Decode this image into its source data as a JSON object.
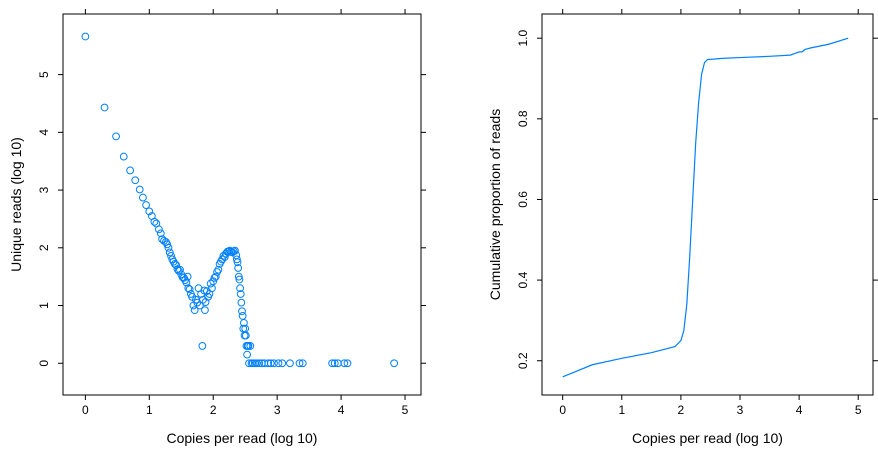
{
  "chart_data": [
    {
      "type": "scatter",
      "xlabel": "Copies per read (log 10)",
      "ylabel": "Unique reads (log 10)",
      "xlim": [
        -0.35,
        5.25
      ],
      "ylim": [
        -0.55,
        6.05
      ],
      "xticks": [
        "0",
        "1",
        "2",
        "3",
        "4",
        "5"
      ],
      "yticks": [
        "0",
        "1",
        "2",
        "3",
        "4",
        "5"
      ],
      "color": "#0080ff",
      "marker": "open-circle",
      "grid": false,
      "points": [
        [
          0.0,
          5.66
        ],
        [
          0.3,
          4.43
        ],
        [
          0.48,
          3.93
        ],
        [
          0.6,
          3.58
        ],
        [
          0.7,
          3.34
        ],
        [
          0.78,
          3.17
        ],
        [
          0.85,
          3.01
        ],
        [
          0.9,
          2.87
        ],
        [
          0.95,
          2.74
        ],
        [
          1.0,
          2.63
        ],
        [
          1.04,
          2.55
        ],
        [
          1.08,
          2.45
        ],
        [
          1.11,
          2.42
        ],
        [
          1.15,
          2.32
        ],
        [
          1.18,
          2.25
        ],
        [
          1.2,
          2.15
        ],
        [
          1.23,
          2.12
        ],
        [
          1.26,
          2.1
        ],
        [
          1.28,
          2.06
        ],
        [
          1.3,
          2.0
        ],
        [
          1.32,
          1.92
        ],
        [
          1.34,
          1.86
        ],
        [
          1.36,
          1.8
        ],
        [
          1.38,
          1.76
        ],
        [
          1.4,
          1.72
        ],
        [
          1.42,
          1.7
        ],
        [
          1.44,
          1.63
        ],
        [
          1.46,
          1.6
        ],
        [
          1.48,
          1.62
        ],
        [
          1.5,
          1.54
        ],
        [
          1.52,
          1.49
        ],
        [
          1.54,
          1.48
        ],
        [
          1.56,
          1.44
        ],
        [
          1.58,
          1.4
        ],
        [
          1.6,
          1.5
        ],
        [
          1.61,
          1.3
        ],
        [
          1.63,
          1.28
        ],
        [
          1.65,
          1.2
        ],
        [
          1.67,
          1.15
        ],
        [
          1.69,
          1.0
        ],
        [
          1.71,
          0.92
        ],
        [
          1.73,
          1.1
        ],
        [
          1.75,
          1.05
        ],
        [
          1.77,
          1.3
        ],
        [
          1.79,
          1.0
        ],
        [
          1.81,
          1.2
        ],
        [
          1.83,
          0.3
        ],
        [
          1.84,
          1.1
        ],
        [
          1.86,
          1.26
        ],
        [
          1.87,
          0.92
        ],
        [
          1.88,
          1.06
        ],
        [
          1.9,
          1.25
        ],
        [
          1.92,
          1.15
        ],
        [
          1.94,
          1.2
        ],
        [
          1.96,
          1.38
        ],
        [
          1.98,
          1.3
        ],
        [
          2.0,
          1.42
        ],
        [
          2.02,
          1.48
        ],
        [
          2.04,
          1.5
        ],
        [
          2.06,
          1.58
        ],
        [
          2.08,
          1.62
        ],
        [
          2.1,
          1.72
        ],
        [
          2.12,
          1.76
        ],
        [
          2.14,
          1.8
        ],
        [
          2.16,
          1.86
        ],
        [
          2.18,
          1.84
        ],
        [
          2.2,
          1.9
        ],
        [
          2.22,
          1.93
        ],
        [
          2.24,
          1.94
        ],
        [
          2.26,
          1.95
        ],
        [
          2.28,
          1.93
        ],
        [
          2.3,
          1.92
        ],
        [
          2.32,
          1.94
        ],
        [
          2.34,
          1.95
        ],
        [
          2.36,
          1.87
        ],
        [
          2.37,
          1.8
        ],
        [
          2.38,
          1.75
        ],
        [
          2.39,
          1.65
        ],
        [
          2.4,
          1.5
        ],
        [
          2.41,
          1.45
        ],
        [
          2.42,
          1.3
        ],
        [
          2.43,
          1.2
        ],
        [
          2.44,
          1.05
        ],
        [
          2.45,
          0.9
        ],
        [
          2.46,
          0.82
        ],
        [
          2.47,
          0.6
        ],
        [
          2.48,
          0.7
        ],
        [
          2.49,
          0.48
        ],
        [
          2.5,
          0.6
        ],
        [
          2.51,
          0.48
        ],
        [
          2.52,
          0.3
        ],
        [
          2.53,
          0.15
        ],
        [
          2.54,
          0.3
        ],
        [
          2.55,
          0.3
        ],
        [
          2.56,
          0.0
        ],
        [
          2.58,
          0.3
        ],
        [
          2.6,
          0.0
        ],
        [
          2.62,
          0.0
        ],
        [
          2.65,
          0.0
        ],
        [
          2.68,
          0.0
        ],
        [
          2.72,
          0.0
        ],
        [
          2.76,
          0.0
        ],
        [
          2.8,
          0.0
        ],
        [
          2.86,
          0.0
        ],
        [
          2.9,
          0.0
        ],
        [
          2.95,
          0.0
        ],
        [
          3.02,
          0.0
        ],
        [
          3.08,
          0.0
        ],
        [
          3.2,
          0.0
        ],
        [
          3.35,
          0.0
        ],
        [
          3.4,
          0.0
        ],
        [
          3.86,
          0.0
        ],
        [
          3.9,
          0.0
        ],
        [
          3.95,
          0.0
        ],
        [
          4.05,
          0.0
        ],
        [
          4.1,
          0.0
        ],
        [
          4.83,
          0.0
        ]
      ]
    },
    {
      "type": "line",
      "xlabel": "Copies per read (log 10)",
      "ylabel": "Cumulative proportion of reads",
      "xlim": [
        -0.35,
        5.25
      ],
      "ylim": [
        0.115,
        1.06
      ],
      "xticks": [
        "0",
        "1",
        "2",
        "3",
        "4",
        "5"
      ],
      "yticks": [
        "0.2",
        "0.4",
        "0.6",
        "0.8",
        "1.0"
      ],
      "color": "#0080ff",
      "grid": false,
      "points": [
        [
          0.0,
          0.16
        ],
        [
          0.2,
          0.172
        ],
        [
          0.5,
          0.19
        ],
        [
          1.0,
          0.206
        ],
        [
          1.5,
          0.22
        ],
        [
          1.9,
          0.235
        ],
        [
          2.0,
          0.25
        ],
        [
          2.05,
          0.275
        ],
        [
          2.1,
          0.34
        ],
        [
          2.15,
          0.46
        ],
        [
          2.2,
          0.6
        ],
        [
          2.25,
          0.74
        ],
        [
          2.3,
          0.84
        ],
        [
          2.35,
          0.91
        ],
        [
          2.4,
          0.94
        ],
        [
          2.45,
          0.947
        ],
        [
          2.55,
          0.948
        ],
        [
          2.7,
          0.95
        ],
        [
          3.0,
          0.952
        ],
        [
          3.5,
          0.955
        ],
        [
          3.85,
          0.958
        ],
        [
          3.95,
          0.963
        ],
        [
          4.0,
          0.966
        ],
        [
          4.05,
          0.966
        ],
        [
          4.1,
          0.972
        ],
        [
          4.2,
          0.976
        ],
        [
          4.5,
          0.985
        ],
        [
          4.83,
          1.0
        ]
      ]
    }
  ]
}
